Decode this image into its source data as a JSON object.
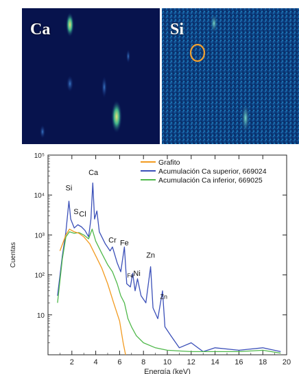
{
  "maps": [
    {
      "element": "Ca"
    },
    {
      "element": "Si"
    }
  ],
  "chart_data": {
    "type": "line",
    "xlabel": "Energía (keV)",
    "ylabel": "Cuentas",
    "xlim": [
      0,
      20
    ],
    "ylim": [
      1,
      100000
    ],
    "yscale": "log",
    "x_ticks": [
      2,
      4,
      6,
      8,
      10,
      12,
      14,
      16,
      18,
      20
    ],
    "y_ticks": [
      {
        "value": 10,
        "label": "10"
      },
      {
        "value": 100,
        "label": "10²"
      },
      {
        "value": 1000,
        "label": "10³"
      },
      {
        "value": 10000,
        "label": "10⁴"
      },
      {
        "value": 100000,
        "label": "10⁵"
      }
    ],
    "legend_position": "top-right",
    "series": [
      {
        "name": "Grafito",
        "color": "#f29a1f",
        "points": [
          [
            1.0,
            400
          ],
          [
            1.5,
            1000
          ],
          [
            1.8,
            1400
          ],
          [
            2.2,
            1200
          ],
          [
            2.6,
            1100
          ],
          [
            3.0,
            900
          ],
          [
            3.5,
            600
          ],
          [
            4.0,
            300
          ],
          [
            4.5,
            150
          ],
          [
            5.0,
            60
          ],
          [
            5.5,
            20
          ],
          [
            6.0,
            7
          ],
          [
            6.3,
            2
          ],
          [
            6.5,
            1
          ]
        ]
      },
      {
        "name": "Acumulación Ca superior, 669024",
        "color": "#3a4fb8",
        "points": [
          [
            0.8,
            30
          ],
          [
            1.2,
            300
          ],
          [
            1.5,
            1200
          ],
          [
            1.75,
            7000
          ],
          [
            1.9,
            2500
          ],
          [
            2.2,
            1500
          ],
          [
            2.5,
            1800
          ],
          [
            2.8,
            1600
          ],
          [
            3.1,
            1300
          ],
          [
            3.4,
            900
          ],
          [
            3.6,
            2500
          ],
          [
            3.75,
            20000
          ],
          [
            3.9,
            2500
          ],
          [
            4.1,
            4000
          ],
          [
            4.3,
            1200
          ],
          [
            4.8,
            600
          ],
          [
            5.2,
            400
          ],
          [
            5.4,
            500
          ],
          [
            5.8,
            200
          ],
          [
            6.1,
            120
          ],
          [
            6.4,
            500
          ],
          [
            6.6,
            60
          ],
          [
            6.9,
            50
          ],
          [
            7.1,
            110
          ],
          [
            7.3,
            40
          ],
          [
            7.5,
            80
          ],
          [
            7.8,
            30
          ],
          [
            8.2,
            20
          ],
          [
            8.6,
            160
          ],
          [
            8.8,
            15
          ],
          [
            9.2,
            8
          ],
          [
            9.6,
            40
          ],
          [
            9.8,
            5
          ],
          [
            10.3,
            3
          ],
          [
            11,
            1.5
          ],
          [
            12,
            2
          ],
          [
            13,
            1.2
          ],
          [
            14,
            1.5
          ],
          [
            16,
            1.3
          ],
          [
            18,
            1.5
          ],
          [
            19.5,
            1.2
          ]
        ]
      },
      {
        "name": "Acumulación Ca inferior, 669025",
        "color": "#4fb84a",
        "points": [
          [
            0.8,
            20
          ],
          [
            1.2,
            250
          ],
          [
            1.5,
            900
          ],
          [
            1.8,
            1200
          ],
          [
            2.2,
            1100
          ],
          [
            2.6,
            1150
          ],
          [
            3.0,
            1000
          ],
          [
            3.4,
            800
          ],
          [
            3.7,
            1400
          ],
          [
            4.0,
            700
          ],
          [
            4.5,
            350
          ],
          [
            5.0,
            180
          ],
          [
            5.4,
            120
          ],
          [
            5.8,
            60
          ],
          [
            6.1,
            30
          ],
          [
            6.4,
            20
          ],
          [
            6.7,
            8
          ],
          [
            7.0,
            5
          ],
          [
            7.4,
            3
          ],
          [
            8,
            2
          ],
          [
            9,
            1.5
          ],
          [
            10,
            1.3
          ],
          [
            12,
            1.2
          ],
          [
            14,
            1.2
          ],
          [
            16,
            1.2
          ],
          [
            18,
            1.3
          ],
          [
            19.5,
            1.1
          ]
        ]
      }
    ],
    "annotations": [
      {
        "text": "Si",
        "x": 1.75,
        "y": 13000,
        "size": 11
      },
      {
        "text": "Ca",
        "x": 3.8,
        "y": 32000,
        "size": 11
      },
      {
        "text": "S",
        "x": 2.35,
        "y": 3300,
        "size": 11
      },
      {
        "text": "Cl",
        "x": 2.9,
        "y": 2900,
        "size": 11
      },
      {
        "text": "Cr",
        "x": 5.4,
        "y": 650,
        "size": 11
      },
      {
        "text": "Fe",
        "x": 6.4,
        "y": 550,
        "size": 11
      },
      {
        "text": "Fe",
        "x": 6.9,
        "y": 85,
        "size": 8
      },
      {
        "text": "Ni",
        "x": 7.45,
        "y": 95,
        "size": 11
      },
      {
        "text": "Zn",
        "x": 8.6,
        "y": 270,
        "size": 11
      },
      {
        "text": "Zn",
        "x": 9.7,
        "y": 25,
        "size": 9
      }
    ]
  }
}
